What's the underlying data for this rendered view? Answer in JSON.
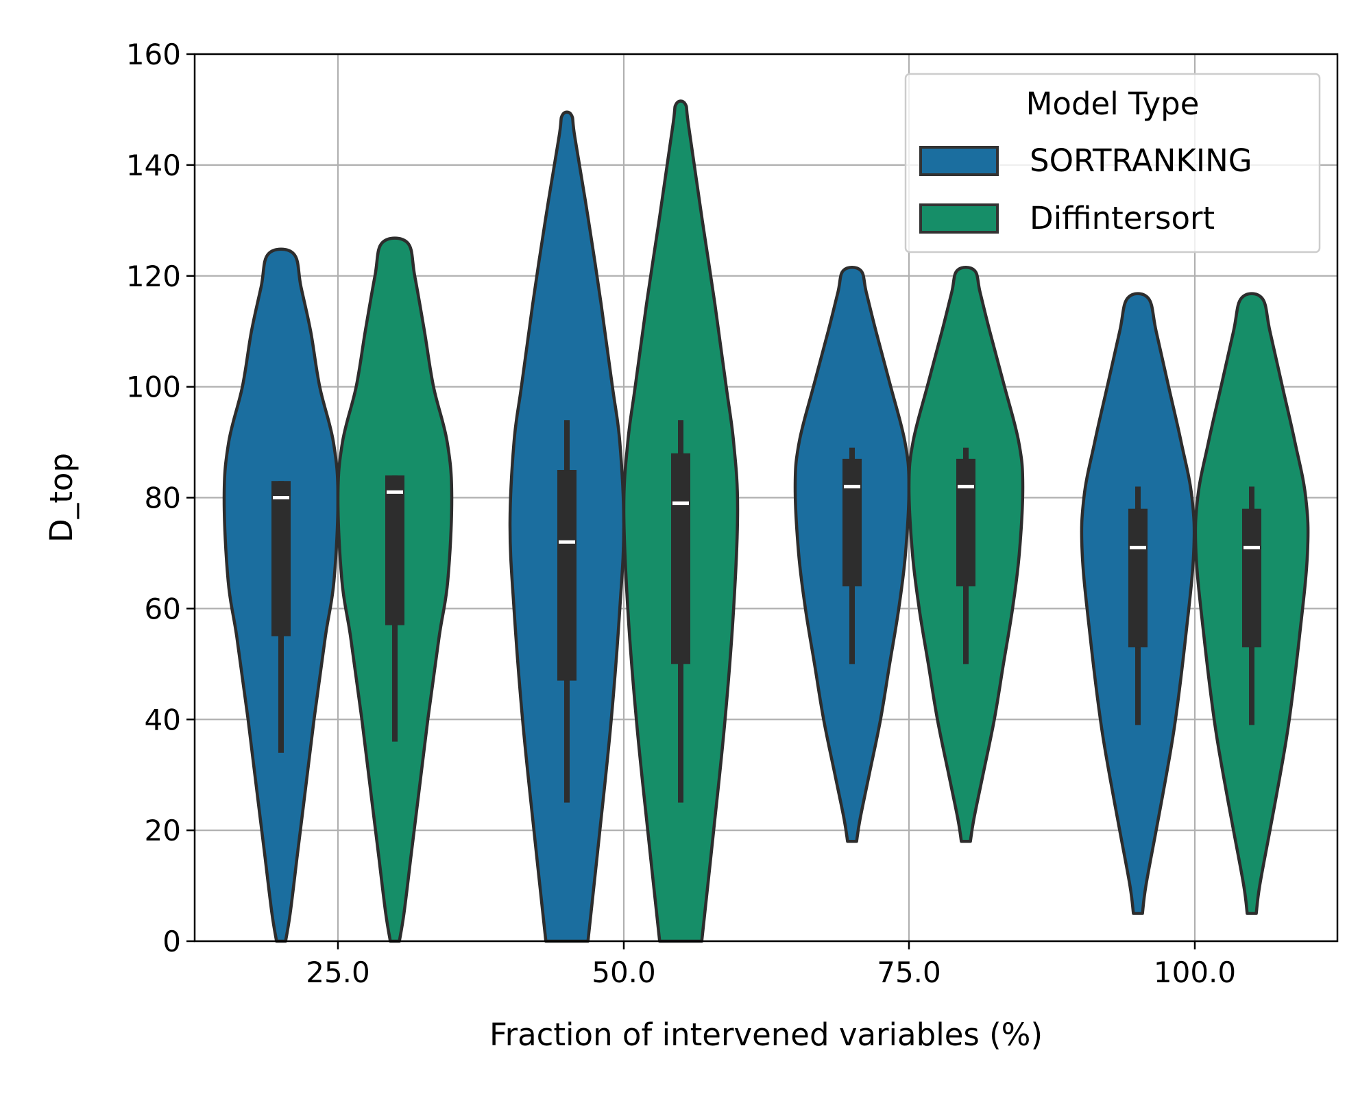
{
  "chart_data": {
    "type": "violin",
    "title": "",
    "xlabel": "Fraction of intervened variables (%)",
    "ylabel": "D_top",
    "categories": [
      "25.0",
      "50.0",
      "75.0",
      "100.0"
    ],
    "ylim": [
      0,
      160
    ],
    "yticks": [
      "0",
      "20",
      "40",
      "60",
      "80",
      "100",
      "120",
      "140",
      "160"
    ],
    "grid": true,
    "legend": {
      "title": "Model Type",
      "placement": "top-right",
      "entries": [
        "SORTRANKING",
        "Diffintersort"
      ]
    },
    "series": [
      {
        "name": "SORTRANKING",
        "color": "#1b6e9f",
        "violins": [
          {
            "category": "25.0",
            "min": 0,
            "max": 124,
            "q1": 55,
            "median": 80,
            "q3": 83,
            "whisker_low": 34,
            "whisker_high": 83,
            "profile": [
              [
                0,
                0.08
              ],
              [
                5,
                0.16
              ],
              [
                15,
                0.28
              ],
              [
                25,
                0.4
              ],
              [
                40,
                0.58
              ],
              [
                55,
                0.78
              ],
              [
                65,
                0.93
              ],
              [
                80,
                1.0
              ],
              [
                90,
                0.92
              ],
              [
                100,
                0.68
              ],
              [
                110,
                0.52
              ],
              [
                118,
                0.35
              ],
              [
                124,
                0.22
              ]
            ]
          },
          {
            "category": "50.0",
            "min": 0,
            "max": 149,
            "q1": 47,
            "median": 72,
            "q3": 85,
            "whisker_low": 25,
            "whisker_high": 94,
            "profile": [
              [
                0,
                0.37
              ],
              [
                20,
                0.58
              ],
              [
                40,
                0.78
              ],
              [
                60,
                0.93
              ],
              [
                75,
                1.0
              ],
              [
                90,
                0.93
              ],
              [
                100,
                0.8
              ],
              [
                115,
                0.6
              ],
              [
                130,
                0.38
              ],
              [
                145,
                0.14
              ],
              [
                149,
                0.08
              ]
            ]
          },
          {
            "category": "75.0",
            "min": 18,
            "max": 121,
            "q1": 64,
            "median": 82,
            "q3": 87,
            "whisker_low": 50,
            "whisker_high": 89,
            "profile": [
              [
                18,
                0.08
              ],
              [
                22,
                0.14
              ],
              [
                30,
                0.3
              ],
              [
                40,
                0.5
              ],
              [
                50,
                0.66
              ],
              [
                60,
                0.82
              ],
              [
                70,
                0.94
              ],
              [
                82,
                1.0
              ],
              [
                90,
                0.93
              ],
              [
                100,
                0.68
              ],
              [
                110,
                0.42
              ],
              [
                117,
                0.25
              ],
              [
                121,
                0.15
              ]
            ]
          },
          {
            "category": "100.0",
            "min": 5,
            "max": 116,
            "q1": 53,
            "median": 71,
            "q3": 78,
            "whisker_low": 39,
            "whisker_high": 82,
            "profile": [
              [
                5,
                0.08
              ],
              [
                10,
                0.14
              ],
              [
                20,
                0.32
              ],
              [
                30,
                0.5
              ],
              [
                40,
                0.66
              ],
              [
                55,
                0.84
              ],
              [
                70,
                0.98
              ],
              [
                80,
                0.95
              ],
              [
                90,
                0.76
              ],
              [
                100,
                0.54
              ],
              [
                110,
                0.32
              ],
              [
                116,
                0.18
              ]
            ]
          }
        ]
      },
      {
        "name": "Diffintersort",
        "color": "#168e68",
        "violins": [
          {
            "category": "25.0",
            "min": 0,
            "max": 126,
            "q1": 57,
            "median": 81,
            "q3": 84,
            "whisker_low": 36,
            "whisker_high": 84,
            "profile": [
              [
                0,
                0.08
              ],
              [
                5,
                0.16
              ],
              [
                15,
                0.28
              ],
              [
                25,
                0.4
              ],
              [
                40,
                0.58
              ],
              [
                55,
                0.78
              ],
              [
                65,
                0.93
              ],
              [
                80,
                1.0
              ],
              [
                90,
                0.92
              ],
              [
                100,
                0.68
              ],
              [
                110,
                0.52
              ],
              [
                120,
                0.35
              ],
              [
                126,
                0.22
              ]
            ]
          },
          {
            "category": "50.0",
            "min": 0,
            "max": 151,
            "q1": 50,
            "median": 79,
            "q3": 88,
            "whisker_low": 25,
            "whisker_high": 94,
            "profile": [
              [
                0,
                0.37
              ],
              [
                20,
                0.58
              ],
              [
                40,
                0.78
              ],
              [
                60,
                0.93
              ],
              [
                78,
                1.0
              ],
              [
                90,
                0.93
              ],
              [
                100,
                0.8
              ],
              [
                115,
                0.6
              ],
              [
                130,
                0.38
              ],
              [
                147,
                0.14
              ],
              [
                151,
                0.08
              ]
            ]
          },
          {
            "category": "75.0",
            "min": 18,
            "max": 121,
            "q1": 64,
            "median": 82,
            "q3": 87,
            "whisker_low": 50,
            "whisker_high": 89,
            "profile": [
              [
                18,
                0.08
              ],
              [
                22,
                0.14
              ],
              [
                30,
                0.3
              ],
              [
                40,
                0.5
              ],
              [
                50,
                0.66
              ],
              [
                60,
                0.82
              ],
              [
                70,
                0.94
              ],
              [
                82,
                1.0
              ],
              [
                90,
                0.93
              ],
              [
                100,
                0.68
              ],
              [
                110,
                0.42
              ],
              [
                117,
                0.25
              ],
              [
                121,
                0.15
              ]
            ]
          },
          {
            "category": "100.0",
            "min": 5,
            "max": 116,
            "q1": 53,
            "median": 71,
            "q3": 78,
            "whisker_low": 39,
            "whisker_high": 82,
            "profile": [
              [
                5,
                0.08
              ],
              [
                10,
                0.14
              ],
              [
                20,
                0.32
              ],
              [
                30,
                0.5
              ],
              [
                40,
                0.66
              ],
              [
                55,
                0.84
              ],
              [
                70,
                0.98
              ],
              [
                80,
                0.95
              ],
              [
                90,
                0.76
              ],
              [
                100,
                0.54
              ],
              [
                110,
                0.32
              ],
              [
                116,
                0.18
              ]
            ]
          }
        ]
      }
    ]
  }
}
